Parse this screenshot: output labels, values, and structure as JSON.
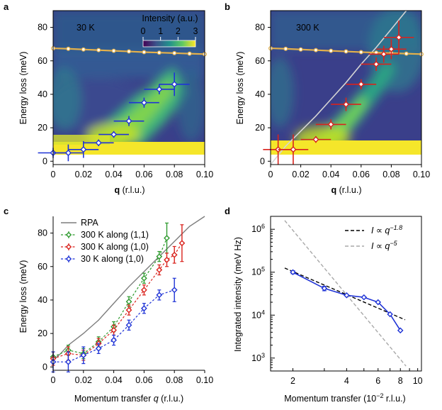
{
  "colors": {
    "blue": "#1f33d6",
    "red": "#d9221c",
    "green": "#2e9a2e",
    "gold": "#e3b04b",
    "rpa": "#7d7d7d",
    "guide_gray": "#a9a9a9"
  },
  "chart_data": [
    {
      "panel_label": "a",
      "type": "heatmap",
      "temperature_label": "30 K",
      "xlabel_bold": "q",
      "xlabel_rest": "(r.l.u.)",
      "ylabel": "Energy loss (meV)",
      "xlim": [
        0,
        0.1
      ],
      "ylim": [
        -2,
        90
      ],
      "xticks": [
        "0",
        "0.02",
        "0.04",
        "0.06",
        "0.08",
        "0.10"
      ],
      "yticks": [
        "0",
        "20",
        "40",
        "60",
        "80"
      ],
      "colorbar": {
        "title": "Intensity (a.u.)",
        "ticks": [
          "0",
          "1",
          "2",
          "3"
        ],
        "range": [
          0,
          3
        ]
      },
      "dispersion_points": [
        {
          "q": 0.0,
          "E": 5,
          "qerr": 0.01,
          "Eerr": 3
        },
        {
          "q": 0.01,
          "E": 5,
          "qerr": 0.01,
          "Eerr": 5
        },
        {
          "q": 0.02,
          "E": 7,
          "qerr": 0.01,
          "Eerr": 5
        },
        {
          "q": 0.03,
          "E": 11,
          "qerr": 0.01,
          "Eerr": 2
        },
        {
          "q": 0.04,
          "E": 16,
          "qerr": 0.01,
          "Eerr": 2
        },
        {
          "q": 0.05,
          "E": 24,
          "qerr": 0.01,
          "Eerr": 3
        },
        {
          "q": 0.06,
          "E": 35,
          "qerr": 0.01,
          "Eerr": 3
        },
        {
          "q": 0.07,
          "E": 43,
          "qerr": 0.01,
          "Eerr": 3
        },
        {
          "q": 0.08,
          "E": 46,
          "qerr": 0.01,
          "Eerr": 7
        }
      ],
      "phonon_line": {
        "q": [
          0,
          0.01,
          0.02,
          0.03,
          0.04,
          0.05,
          0.06,
          0.07,
          0.08,
          0.09,
          0.1
        ],
        "E": [
          67.5,
          67.2,
          66.8,
          66.4,
          66.0,
          65.6,
          65.2,
          64.9,
          64.6,
          64.3,
          64.0
        ]
      }
    },
    {
      "panel_label": "b",
      "type": "heatmap",
      "temperature_label": "300 K",
      "xlabel_bold": "q",
      "xlabel_rest": "(r.l.u.)",
      "ylabel": "Energy loss (meV)",
      "xlim": [
        0,
        0.1
      ],
      "ylim": [
        -2,
        90
      ],
      "xticks": [
        "0",
        "0.02",
        "0.04",
        "0.06",
        "0.08",
        "0.10"
      ],
      "yticks": [
        "0",
        "20",
        "40",
        "60",
        "80"
      ],
      "dispersion_points": [
        {
          "q": 0.005,
          "E": 7,
          "qerr": 0.01,
          "Eerr": 9
        },
        {
          "q": 0.015,
          "E": 7,
          "qerr": 0.01,
          "Eerr": 9
        },
        {
          "q": 0.03,
          "E": 13,
          "qerr": 0.01,
          "Eerr": 2
        },
        {
          "q": 0.04,
          "E": 22,
          "qerr": 0.01,
          "Eerr": 3
        },
        {
          "q": 0.05,
          "E": 34,
          "qerr": 0.01,
          "Eerr": 4
        },
        {
          "q": 0.06,
          "E": 46,
          "qerr": 0.01,
          "Eerr": 3
        },
        {
          "q": 0.07,
          "E": 58,
          "qerr": 0.01,
          "Eerr": 4
        },
        {
          "q": 0.075,
          "E": 64,
          "qerr": 0.01,
          "Eerr": 5
        },
        {
          "q": 0.08,
          "E": 67,
          "qerr": 0.01,
          "Eerr": 6
        },
        {
          "q": 0.085,
          "E": 74,
          "qerr": 0.01,
          "Eerr": 10
        }
      ],
      "rpa_line": {
        "q": [
          0,
          0.01,
          0.02,
          0.03,
          0.04,
          0.05,
          0.06,
          0.07,
          0.08,
          0.09
        ],
        "E": [
          -2,
          9,
          18,
          27,
          37,
          47,
          58,
          68,
          79,
          90
        ]
      },
      "phonon_line": {
        "q": [
          0,
          0.01,
          0.02,
          0.03,
          0.04,
          0.05,
          0.06,
          0.07,
          0.08,
          0.09,
          0.1
        ],
        "E": [
          67.5,
          67.2,
          66.8,
          66.4,
          66.0,
          65.6,
          65.2,
          64.9,
          64.6,
          64.3,
          64.0
        ]
      }
    },
    {
      "panel_label": "c",
      "type": "line",
      "xlabel": "Momentum transfer",
      "xlabel_var": "q",
      "xlabel_unit": "(r.l.u.)",
      "ylabel": "Energy loss (meV)",
      "xlim": [
        0,
        0.1
      ],
      "ylim": [
        -2,
        90
      ],
      "xticks": [
        "0",
        "0.02",
        "0.04",
        "0.06",
        "0.08",
        "0.10"
      ],
      "yticks": [
        "0",
        "20",
        "40",
        "60",
        "80"
      ],
      "legend_position": "top-left",
      "rpa": {
        "name": "RPA",
        "q": [
          0,
          0.005,
          0.01,
          0.02,
          0.03,
          0.04,
          0.05,
          0.06,
          0.07,
          0.08,
          0.09,
          0.1
        ],
        "E": [
          4,
          8,
          13,
          20,
          28,
          38,
          48,
          57,
          66,
          75,
          84,
          92
        ]
      },
      "series": [
        {
          "name": "300 K along (1,1)",
          "color_key": "green",
          "q": [
            0,
            0.01,
            0.02,
            0.03,
            0.04,
            0.05,
            0.06,
            0.07,
            0.075
          ],
          "E": [
            6,
            10,
            8,
            15,
            24,
            39,
            53,
            66,
            77
          ],
          "Eerr": [
            3,
            3,
            3,
            3,
            3,
            3,
            3,
            3,
            9
          ]
        },
        {
          "name": "300 K along (1,0)",
          "color_key": "red",
          "q": [
            0,
            0.01,
            0.02,
            0.03,
            0.04,
            0.05,
            0.06,
            0.07,
            0.075,
            0.08,
            0.085
          ],
          "E": [
            5,
            8,
            7,
            14,
            22,
            34,
            46,
            58,
            64,
            67,
            74
          ],
          "Eerr": [
            4,
            4,
            3,
            3,
            3,
            3,
            3,
            3,
            4,
            5,
            11
          ]
        },
        {
          "name": "30 K along (1,0)",
          "color_key": "blue",
          "q": [
            0,
            0.01,
            0.02,
            0.03,
            0.04,
            0.05,
            0.06,
            0.07,
            0.08
          ],
          "E": [
            3,
            3,
            7,
            11,
            16,
            25,
            35,
            43,
            46
          ],
          "Eerr": [
            6,
            6,
            5,
            3,
            3,
            3,
            3,
            3,
            7
          ]
        }
      ]
    },
    {
      "panel_label": "d",
      "type": "line",
      "xscale": "log",
      "yscale": "log",
      "xlabel": "Momentum transfer (10",
      "xlabel_exp": "−2",
      "xlabel_unit": " r.l.u.)",
      "ylabel": "Integrated intensity (meV Hz)",
      "xlim": [
        1.5,
        10.5
      ],
      "ylim": [
        500,
        2000000
      ],
      "xticks": [
        2,
        4,
        6,
        8,
        10
      ],
      "xtick_labels": [
        "2",
        "4",
        "6",
        "8",
        "10"
      ],
      "yticks": [
        1000,
        10000,
        100000,
        1000000
      ],
      "ytick_base": "10",
      "ytick_exps": [
        "3",
        "4",
        "5",
        "6"
      ],
      "legend_position": "top-right",
      "data_series": {
        "name": "30 K",
        "q": [
          2,
          3,
          4,
          5,
          6,
          7,
          8
        ],
        "I": [
          100000,
          42000,
          29000,
          26000,
          20000,
          10500,
          4400
        ],
        "Ierr": [
          8000,
          5000,
          0,
          0,
          0,
          0,
          0
        ]
      },
      "fit_lines": [
        {
          "legend_prefix": "I ∝ q",
          "legend_exp": "−1.8",
          "style": "dashed-black",
          "q": [
            1.8,
            8.5
          ],
          "I": [
            125000,
            7800
          ]
        },
        {
          "legend_prefix": "I ∝ q",
          "legend_exp": "−5",
          "style": "dashed-gray",
          "q": [
            1.8,
            8.6
          ],
          "I": [
            1600000,
            650
          ]
        }
      ]
    }
  ]
}
